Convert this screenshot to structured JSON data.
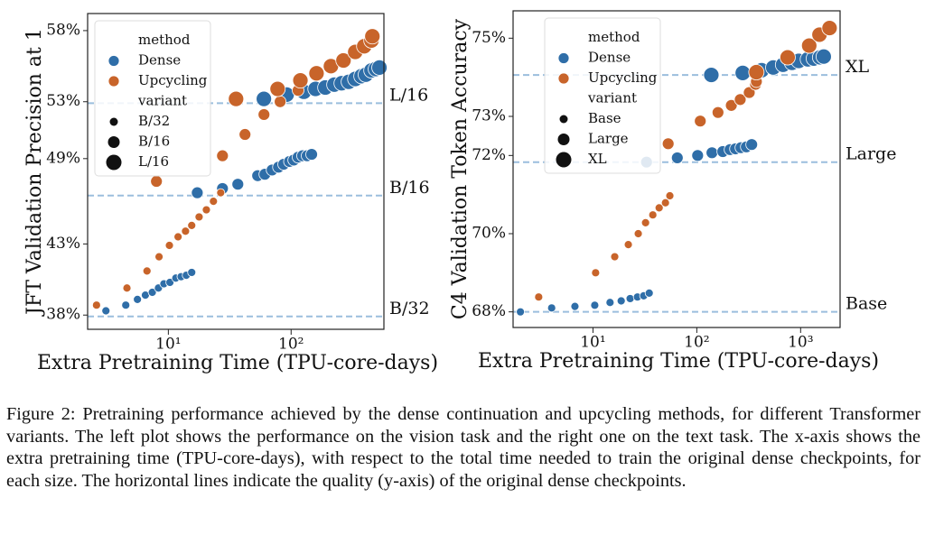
{
  "chart_data": [
    {
      "type": "scatter",
      "ylabel": "JFT Validation Precision at 1",
      "xlabel": "Extra Pretraining Time (TPU-core-days)",
      "xscale": "log",
      "xlim": [
        2.2,
        570
      ],
      "xticks": [
        {
          "value": 10,
          "label": "10¹"
        },
        {
          "value": 100,
          "label": "10²"
        }
      ],
      "ylim": [
        37,
        59.2
      ],
      "yticks": [
        {
          "value": 38,
          "label": "38%"
        },
        {
          "value": 43,
          "label": "43%"
        },
        {
          "value": 49,
          "label": "49%"
        },
        {
          "value": 53,
          "label": "53%"
        },
        {
          "value": 58,
          "label": "58%"
        }
      ],
      "reference_lines": [
        {
          "label": "L/16",
          "value": 52.9,
          "color": "#9bbedd"
        },
        {
          "label": "B/16",
          "value": 46.4,
          "color": "#9bbedd"
        },
        {
          "label": "B/32",
          "value": 37.9,
          "color": "#9bbedd"
        }
      ],
      "hue_title": "method",
      "size_title": "variant",
      "variant_names": [
        "B/32",
        "B/16",
        "L/16"
      ],
      "methods": [
        {
          "name": "Dense",
          "color": "#2f6ea8",
          "variants": [
            {
              "x": [
                3.1,
                4.5,
                5.6,
                6.5,
                7.4,
                8.3,
                9.2,
                10.3,
                11.5,
                12.7,
                14.0,
                15.5
              ],
              "values": [
                38.3,
                38.7,
                39.1,
                39.4,
                39.6,
                39.9,
                40.2,
                40.3,
                40.6,
                40.7,
                40.8,
                41.0
              ]
            },
            {
              "x": [
                17.2,
                27.6,
                36.8,
                53.4,
                61.1,
                70,
                78.9,
                87,
                97,
                105,
                114,
                124,
                135,
                147
              ],
              "values": [
                46.6,
                46.9,
                47.2,
                47.8,
                47.9,
                48.2,
                48.4,
                48.6,
                48.8,
                48.9,
                49.1,
                49.2,
                49.2,
                49.3
              ]
            },
            {
              "x": [
                60,
                92,
                127,
                158,
                190,
                225,
                258,
                295,
                333,
                374,
                406,
                451,
                490,
                524
              ],
              "values": [
                53.2,
                53.5,
                53.7,
                53.9,
                54.0,
                54.2,
                54.3,
                54.4,
                54.6,
                54.8,
                54.9,
                55.2,
                55.3,
                55.4
              ]
            }
          ]
        },
        {
          "name": "Upcycling",
          "color": "#c8642a",
          "variants": [
            {
              "x": [
                2.6,
                4.6,
                6.7,
                8.4,
                10.2,
                12.0,
                13.8,
                15.5,
                17.8,
                20.4,
                23.3,
                26.7
              ],
              "values": [
                38.7,
                39.9,
                41.1,
                42.1,
                42.9,
                43.5,
                43.9,
                44.3,
                44.9,
                45.4,
                46.0,
                46.6
              ]
            },
            {
              "x": [
                8.0,
                27.6,
                42.1,
                60.1,
                81.4,
                114
              ],
              "values": [
                47.4,
                49.2,
                50.7,
                52.1,
                53.0,
                53.8
              ]
            },
            {
              "x": [
                35.6,
                77.6,
                119,
                161,
                211,
                267,
                333,
                394,
                451,
                459
              ],
              "values": [
                53.2,
                53.9,
                54.5,
                55.0,
                55.5,
                55.9,
                56.5,
                56.9,
                57.3,
                57.6
              ]
            }
          ]
        }
      ]
    },
    {
      "type": "scatter",
      "ylabel": "C4 Validation Token Accuracy",
      "xlabel": "Extra Pretraining Time (TPU-core-days)",
      "xscale": "log",
      "xlim": [
        1.7,
        2400
      ],
      "xticks": [
        {
          "value": 10,
          "label": "10¹"
        },
        {
          "value": 100,
          "label": "10²"
        },
        {
          "value": 1000,
          "label": "10³"
        }
      ],
      "ylim": [
        67.6,
        75.7
      ],
      "yticks": [
        {
          "value": 68,
          "label": "68%"
        },
        {
          "value": 70,
          "label": "70%"
        },
        {
          "value": 72,
          "label": "72%"
        },
        {
          "value": 73,
          "label": "73%"
        },
        {
          "value": 75,
          "label": "75%"
        }
      ],
      "reference_lines": [
        {
          "label": "XL",
          "value": 74.06,
          "color": "#9bbedd"
        },
        {
          "label": "Large",
          "value": 71.83,
          "color": "#9bbedd"
        },
        {
          "label": "Base",
          "value": 68.0,
          "color": "#9bbedd"
        }
      ],
      "hue_title": "method",
      "size_title": "variant",
      "variant_names": [
        "Base",
        "Large",
        "XL"
      ],
      "methods": [
        {
          "name": "Dense",
          "color": "#2f6ea8",
          "variants": [
            {
              "x": [
                2.0,
                4.0,
                6.7,
                10.4,
                14.6,
                18.7,
                22.8,
                26.8,
                30.8,
                34.8
              ],
              "values": [
                68.0,
                68.1,
                68.14,
                68.17,
                68.24,
                68.28,
                68.34,
                68.38,
                68.41,
                68.48
              ]
            },
            {
              "x": [
                32.8,
                64.9,
                101.9,
                140,
                178,
                209,
                236,
                266,
                300,
                338
              ],
              "values": [
                71.83,
                71.94,
                72.0,
                72.07,
                72.1,
                72.15,
                72.17,
                72.2,
                72.22,
                72.28
              ]
            },
            {
              "x": [
                138,
                277,
                421,
                545,
                677,
                826,
                958,
                1174,
                1340,
                1540,
                1670
              ],
              "values": [
                74.06,
                74.11,
                74.18,
                74.25,
                74.32,
                74.37,
                74.42,
                74.46,
                74.48,
                74.51,
                74.53
              ]
            }
          ]
        },
        {
          "name": "Upcycling",
          "color": "#c8642a",
          "variants": [
            {
              "x": [
                3.0,
                10.6,
                16.2,
                21.9,
                27.3,
                32.1,
                37.7,
                43.4,
                49.9,
                55.0
              ],
              "values": [
                68.38,
                69.0,
                69.41,
                69.72,
                70.0,
                70.28,
                70.48,
                70.66,
                70.79,
                70.97
              ]
            },
            {
              "x": [
                53.0,
                108,
                160,
                215,
                262,
                320,
                368,
                375
              ],
              "values": [
                72.3,
                72.88,
                73.1,
                73.28,
                73.43,
                73.61,
                73.82,
                73.89
              ]
            },
            {
              "x": [
                375,
                750,
                1210,
                1520,
                1900
              ],
              "values": [
                74.13,
                74.51,
                74.81,
                75.09,
                75.26
              ]
            }
          ]
        }
      ]
    }
  ],
  "caption": "Figure 2: Pretraining performance achieved by the dense continuation and upcycling methods, for different Transformer variants. The left plot shows the performance on the vision task and the right one on the text task. The x-axis shows the extra pretraining time (TPU-core-days), with respect to the total time needed to train the original dense checkpoints, for each size. The horizontal lines indicate the quality (y-axis) of the original dense checkpoints."
}
